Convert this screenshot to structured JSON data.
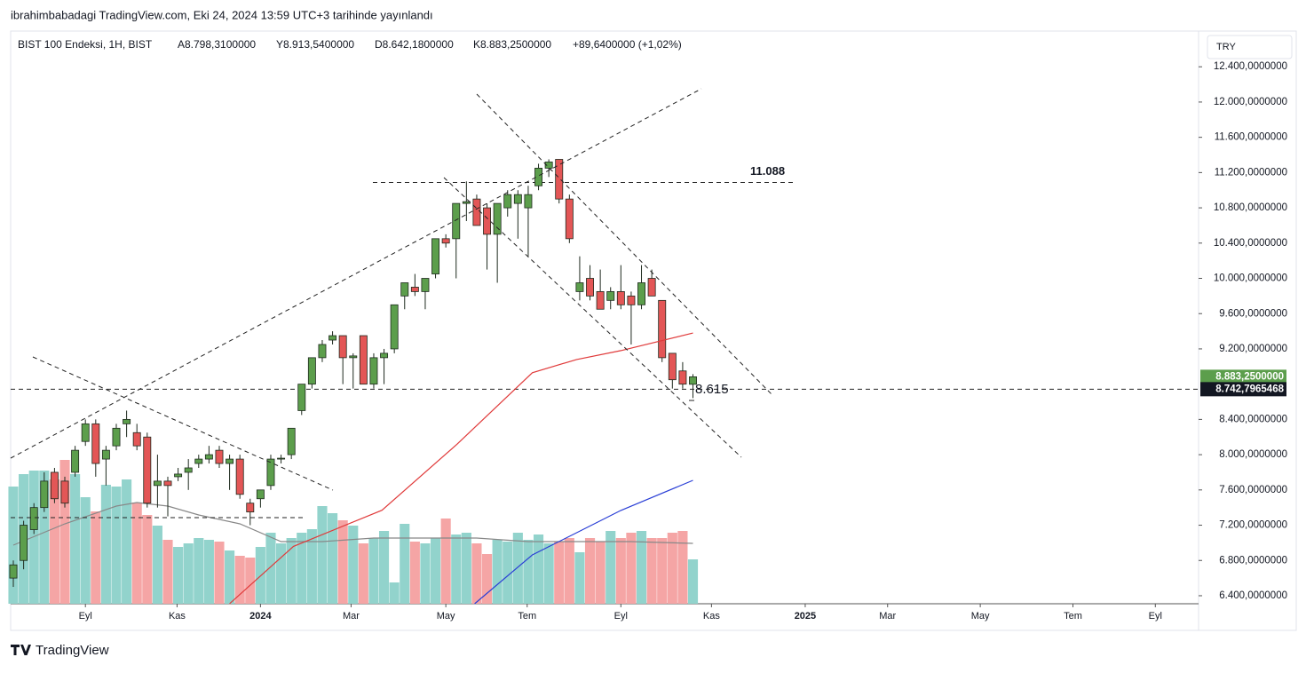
{
  "header": {
    "publisher": "ibrahimbabadagi TradingView.com, Eki 24, 2024 13:59 UTC+3 tarihinde yayınlandı",
    "symbol": "BIST 100 Endeksi, 1H, BIST",
    "open": "A8.798,3100000",
    "high": "Y8.913,5400000",
    "low": "D8.642,1800000",
    "close": "K8.883,2500000",
    "change": "+89,6400000 (+1,02%)",
    "currency": "TRY",
    "logo": "TradingView"
  },
  "chart_data": {
    "type": "candlestick",
    "xlim": [
      -0.26,
      115.1
    ],
    "xticks": [
      {
        "value": 7.0,
        "label": "Eyl"
      },
      {
        "value": 15.9,
        "label": "Kas"
      },
      {
        "value": 24.0,
        "label": "2024"
      },
      {
        "value": 32.8,
        "label": "Mar"
      },
      {
        "value": 42.0,
        "label": "May"
      },
      {
        "value": 49.9,
        "label": "Tem"
      },
      {
        "value": 59.0,
        "label": "Eyl"
      },
      {
        "value": 67.8,
        "label": "Kas"
      },
      {
        "value": 76.9,
        "label": "2025"
      },
      {
        "value": 84.9,
        "label": "Mar"
      },
      {
        "value": 93.9,
        "label": "May"
      },
      {
        "value": 102.9,
        "label": "Tem"
      },
      {
        "value": 110.9,
        "label": "Eyl"
      }
    ],
    "ylim": [
      6309,
      12805
    ],
    "yticks": [
      {
        "value": 6400,
        "label": "6.400,0000000"
      },
      {
        "value": 6800,
        "label": "6.800,0000000"
      },
      {
        "value": 7200,
        "label": "7.200,0000000"
      },
      {
        "value": 7600,
        "label": "7.600,0000000"
      },
      {
        "value": 8000,
        "label": "8.000,0000000"
      },
      {
        "value": 8400,
        "label": "8.400,0000000"
      },
      {
        "value": 9200,
        "label": "9.200,0000000"
      },
      {
        "value": 9600,
        "label": "9.600,0000000"
      },
      {
        "value": 10000,
        "label": "10.000,0000000"
      },
      {
        "value": 10400,
        "label": "10.400,0000000"
      },
      {
        "value": 10800,
        "label": "10.800,0000000"
      },
      {
        "value": 11200,
        "label": "11.200,0000000"
      },
      {
        "value": 11600,
        "label": "11.600,0000000"
      },
      {
        "value": 12000,
        "label": "12.000,0000000"
      },
      {
        "value": 12400,
        "label": "12.400,0000000"
      }
    ],
    "up_color": "#5c9e4c",
    "down_color": "#e35656",
    "candles": [
      [
        6600,
        6800,
        6500,
        6750
      ],
      [
        6800,
        7250,
        6700,
        7200
      ],
      [
        7150,
        7450,
        7100,
        7400
      ],
      [
        7400,
        7800,
        7350,
        7700
      ],
      [
        7800,
        7850,
        7450,
        7500
      ],
      [
        7700,
        7750,
        7400,
        7450
      ],
      [
        7800,
        8100,
        7750,
        8050
      ],
      [
        8150,
        8400,
        8100,
        8350
      ],
      [
        8350,
        8400,
        7750,
        7900
      ],
      [
        7950,
        8100,
        7650,
        8050
      ],
      [
        8100,
        8350,
        8050,
        8300
      ],
      [
        8350,
        8500,
        8200,
        8400
      ],
      [
        8250,
        8350,
        8050,
        8100
      ],
      [
        8200,
        8250,
        7400,
        7450
      ],
      [
        7650,
        8000,
        7400,
        7700
      ],
      [
        7700,
        7750,
        7300,
        7650
      ],
      [
        7750,
        7850,
        7700,
        7780
      ],
      [
        7800,
        7950,
        7600,
        7850
      ],
      [
        7900,
        8000,
        7850,
        7950
      ],
      [
        7950,
        8100,
        7900,
        8000
      ],
      [
        8050,
        8100,
        7850,
        7900
      ],
      [
        7900,
        8000,
        7600,
        7950
      ],
      [
        7950,
        8000,
        7500,
        7550
      ],
      [
        7450,
        7500,
        7200,
        7350
      ],
      [
        7500,
        7600,
        7400,
        7600
      ],
      [
        7650,
        8000,
        7600,
        7950
      ],
      [
        7950,
        8000,
        7900,
        7960
      ],
      [
        8000,
        8300,
        7950,
        8300
      ],
      [
        8500,
        8800,
        8450,
        8800
      ],
      [
        8800,
        9100,
        8750,
        9100
      ],
      [
        9100,
        9300,
        9050,
        9250
      ],
      [
        9300,
        9400,
        9250,
        9350
      ],
      [
        9350,
        9350,
        8800,
        9100
      ],
      [
        9100,
        9150,
        8750,
        9120
      ],
      [
        9350,
        9350,
        8800,
        8800
      ],
      [
        8800,
        9150,
        8750,
        9100
      ],
      [
        9100,
        9200,
        8800,
        9150
      ],
      [
        9200,
        9700,
        9150,
        9700
      ],
      [
        9800,
        9950,
        9650,
        9950
      ],
      [
        9900,
        10050,
        9800,
        9850
      ],
      [
        9850,
        10000,
        9650,
        10000
      ],
      [
        10050,
        10450,
        10000,
        10450
      ],
      [
        10450,
        10500,
        10350,
        10400
      ],
      [
        10450,
        10850,
        10000,
        10850
      ],
      [
        10850,
        11100,
        10650,
        10870
      ],
      [
        10900,
        10950,
        10600,
        10600
      ],
      [
        10800,
        10850,
        10100,
        10500
      ],
      [
        10500,
        10850,
        9950,
        10850
      ],
      [
        10800,
        11000,
        10700,
        10950
      ],
      [
        10850,
        11000,
        10450,
        10950
      ],
      [
        10800,
        11050,
        10250,
        10950
      ],
      [
        11050,
        11300,
        11000,
        11250
      ],
      [
        11250,
        11350,
        11150,
        11320
      ],
      [
        11350,
        11350,
        10850,
        10900
      ],
      [
        10900,
        10950,
        10400,
        10450
      ],
      [
        9850,
        10250,
        9750,
        9950
      ],
      [
        10000,
        10150,
        9750,
        9800
      ],
      [
        9850,
        10100,
        9650,
        9650
      ],
      [
        9750,
        9900,
        9650,
        9850
      ],
      [
        9850,
        10150,
        9650,
        9700
      ],
      [
        9800,
        9850,
        9250,
        9700
      ],
      [
        9700,
        10150,
        9650,
        9950
      ],
      [
        10000,
        10100,
        9800,
        9800
      ],
      [
        9750,
        9750,
        9050,
        9100
      ],
      [
        9150,
        9150,
        8750,
        8850
      ],
      [
        8950,
        9050,
        8750,
        8800
      ],
      [
        8798.31,
        8913.54,
        8642.18,
        8883.25
      ]
    ],
    "vlim": [
      0,
      100
    ],
    "volume_up_color": "#92d3cc",
    "volume_down_color": "#f5a5a5",
    "volumes": [
      66,
      73,
      75,
      75,
      70,
      81,
      73,
      60,
      52,
      67,
      66,
      70,
      57,
      50,
      44,
      36,
      32,
      34,
      37,
      36,
      35,
      30,
      27,
      26,
      32,
      40,
      34,
      37,
      40,
      42,
      55,
      51,
      47,
      44,
      34,
      37,
      41,
      12,
      45,
      35,
      34,
      37,
      48,
      39,
      40,
      34,
      28,
      36,
      35,
      40,
      36,
      39,
      34,
      35,
      37,
      29,
      37,
      35,
      41,
      37,
      40,
      41,
      37,
      37,
      40,
      41,
      25
    ],
    "volume_ma": {
      "color": "#888888",
      "points": [
        [
          0,
          33
        ],
        [
          5,
          45
        ],
        [
          10,
          55
        ],
        [
          12,
          57
        ],
        [
          15,
          55
        ],
        [
          18,
          50
        ],
        [
          22,
          45
        ],
        [
          26,
          35
        ],
        [
          30,
          35
        ],
        [
          35,
          37
        ],
        [
          40,
          37
        ],
        [
          45,
          37
        ],
        [
          50,
          35
        ],
        [
          55,
          35
        ],
        [
          60,
          35
        ],
        [
          66,
          34
        ]
      ]
    },
    "ma_lines": [
      {
        "color": "#e03a3a",
        "points": [
          [
            21,
            6310
          ],
          [
            27.2,
            6960
          ],
          [
            35.8,
            7370
          ],
          [
            43.1,
            8120
          ],
          [
            50.4,
            8930
          ],
          [
            54.7,
            9080
          ],
          [
            59,
            9180
          ],
          [
            66,
            9380
          ]
        ]
      },
      {
        "color": "#2a3fd6",
        "points": [
          [
            44.8,
            6309
          ],
          [
            50.4,
            6863
          ],
          [
            54.7,
            7115
          ],
          [
            59,
            7367
          ],
          [
            66,
            7709
          ]
        ]
      }
    ],
    "last_price": {
      "value": 8883.25,
      "label": "8.883,2500000"
    },
    "current_line": {
      "value": 8742.7965468,
      "label": "8.742,7965468"
    },
    "resistance": {
      "value": 11088,
      "label": "11.088"
    },
    "low_mark": {
      "value": 8615,
      "label": "8.615"
    }
  }
}
